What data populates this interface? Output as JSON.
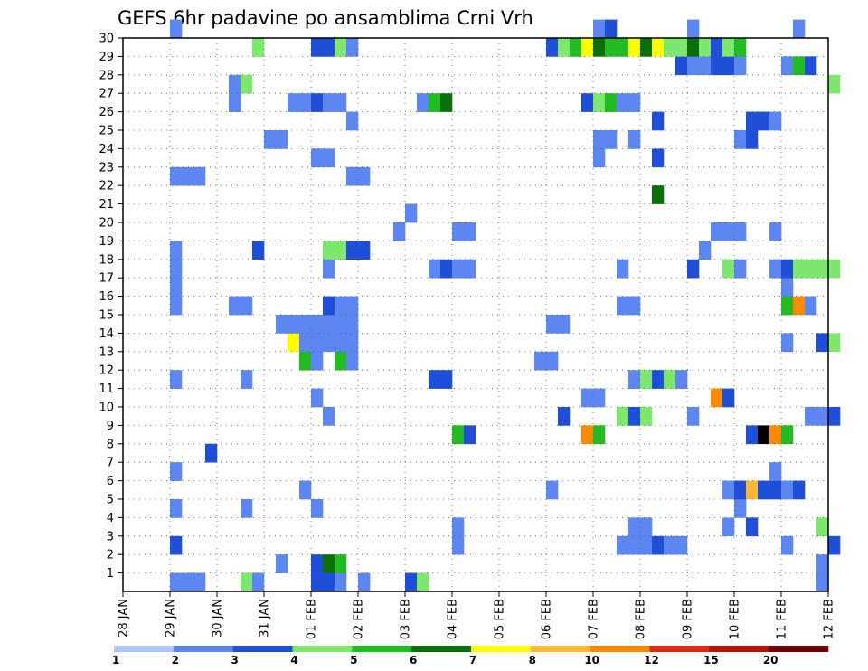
{
  "chart_data": {
    "type": "heatmap",
    "title": "GEFS 6hr padavine po ansamblima Crni Vrh",
    "xlabel": "",
    "ylabel": "",
    "x_tick_labels": [
      "28 JAN",
      "29 JAN",
      "30 JAN",
      "31 JAN",
      "01 FEB",
      "02 FEB",
      "03 FEB",
      "04 FEB",
      "05 FEB",
      "06 FEB",
      "07 FEB",
      "08 FEB",
      "09 FEB",
      "10 FEB",
      "11 FEB",
      "12 FEB"
    ],
    "x_range_steps": [
      0,
      60
    ],
    "steps_per_day": 4,
    "y_tick_labels": [
      "1",
      "2",
      "3",
      "4",
      "5",
      "6",
      "7",
      "8",
      "9",
      "10",
      "11",
      "12",
      "13",
      "14",
      "15",
      "16",
      "17",
      "18",
      "19",
      "20",
      "21",
      "22",
      "23",
      "24",
      "25",
      "26",
      "27",
      "28",
      "29",
      "30"
    ],
    "y_range_members": [
      0,
      30
    ],
    "grid": true,
    "levels": [
      1,
      2,
      3,
      4,
      5,
      6,
      7,
      8,
      10,
      12,
      15,
      20
    ],
    "level_colors": [
      "#aec6f5",
      "#5c86f0",
      "#1f4ed8",
      "#7ee86e",
      "#22bb22",
      "#0a6e0a",
      "#ffff00",
      "#ffb833",
      "#ff8a00",
      "#e02a10",
      "#b80f0f",
      "#6e0000"
    ],
    "legend_position": "bottom",
    "cells": [
      [
        0,
        4,
        1
      ],
      [
        0,
        5,
        1
      ],
      [
        0,
        6,
        1
      ],
      [
        0,
        10,
        3
      ],
      [
        0,
        11,
        1
      ],
      [
        0,
        16,
        2
      ],
      [
        0,
        17,
        2
      ],
      [
        0,
        18,
        1
      ],
      [
        0,
        20,
        1
      ],
      [
        0,
        24,
        2
      ],
      [
        0,
        25,
        3
      ],
      [
        0,
        59,
        1
      ],
      [
        1,
        13,
        1
      ],
      [
        1,
        16,
        2
      ],
      [
        1,
        17,
        5
      ],
      [
        1,
        18,
        4
      ],
      [
        1,
        59,
        1
      ],
      [
        2,
        4,
        2
      ],
      [
        2,
        28,
        1
      ],
      [
        2,
        42,
        1
      ],
      [
        2,
        43,
        1
      ],
      [
        2,
        44,
        1
      ],
      [
        2,
        45,
        2
      ],
      [
        2,
        46,
        1
      ],
      [
        2,
        47,
        1
      ],
      [
        2,
        56,
        1
      ],
      [
        2,
        60,
        2
      ],
      [
        3,
        28,
        1
      ],
      [
        3,
        43,
        1
      ],
      [
        3,
        44,
        1
      ],
      [
        3,
        51,
        1
      ],
      [
        3,
        53,
        2
      ],
      [
        3,
        59,
        3
      ],
      [
        4,
        4,
        1
      ],
      [
        4,
        10,
        1
      ],
      [
        4,
        16,
        1
      ],
      [
        4,
        52,
        1
      ],
      [
        5,
        15,
        1
      ],
      [
        5,
        36,
        1
      ],
      [
        5,
        51,
        1
      ],
      [
        5,
        52,
        2
      ],
      [
        5,
        53,
        7
      ],
      [
        5,
        54,
        2
      ],
      [
        5,
        55,
        2
      ],
      [
        5,
        56,
        1
      ],
      [
        5,
        57,
        2
      ],
      [
        6,
        4,
        1
      ],
      [
        6,
        55,
        1
      ],
      [
        7,
        7,
        2
      ],
      [
        8,
        28,
        4
      ],
      [
        8,
        29,
        2
      ],
      [
        8,
        39,
        8
      ],
      [
        8,
        40,
        4
      ],
      [
        8,
        53,
        2
      ],
      [
        8,
        54,
        12
      ],
      [
        8,
        55,
        8
      ],
      [
        8,
        56,
        4
      ],
      [
        9,
        17,
        1
      ],
      [
        9,
        37,
        2
      ],
      [
        9,
        42,
        3
      ],
      [
        9,
        43,
        2
      ],
      [
        9,
        44,
        3
      ],
      [
        9,
        48,
        1
      ],
      [
        9,
        58,
        1
      ],
      [
        9,
        59,
        1
      ],
      [
        9,
        60,
        2
      ],
      [
        10,
        16,
        1
      ],
      [
        10,
        39,
        1
      ],
      [
        10,
        40,
        1
      ],
      [
        10,
        50,
        8
      ],
      [
        10,
        51,
        2
      ],
      [
        11,
        4,
        1
      ],
      [
        11,
        10,
        1
      ],
      [
        11,
        26,
        2
      ],
      [
        11,
        27,
        2
      ],
      [
        11,
        43,
        1
      ],
      [
        11,
        44,
        3
      ],
      [
        11,
        45,
        2
      ],
      [
        11,
        46,
        3
      ],
      [
        11,
        47,
        1
      ],
      [
        12,
        15,
        4
      ],
      [
        12,
        16,
        1
      ],
      [
        12,
        18,
        4
      ],
      [
        12,
        19,
        1
      ],
      [
        12,
        35,
        1
      ],
      [
        12,
        36,
        1
      ],
      [
        13,
        14,
        6
      ],
      [
        13,
        15,
        1
      ],
      [
        13,
        16,
        1
      ],
      [
        13,
        17,
        1
      ],
      [
        13,
        18,
        1
      ],
      [
        13,
        19,
        1
      ],
      [
        13,
        56,
        1
      ],
      [
        13,
        59,
        2
      ],
      [
        13,
        60,
        3
      ],
      [
        14,
        13,
        1
      ],
      [
        14,
        14,
        1
      ],
      [
        14,
        15,
        1
      ],
      [
        14,
        16,
        1
      ],
      [
        14,
        17,
        1
      ],
      [
        14,
        18,
        1
      ],
      [
        14,
        19,
        1
      ],
      [
        14,
        36,
        1
      ],
      [
        14,
        37,
        1
      ],
      [
        15,
        4,
        1
      ],
      [
        15,
        9,
        1
      ],
      [
        15,
        10,
        1
      ],
      [
        15,
        17,
        2
      ],
      [
        15,
        18,
        1
      ],
      [
        15,
        19,
        1
      ],
      [
        15,
        42,
        1
      ],
      [
        15,
        43,
        1
      ],
      [
        15,
        56,
        4
      ],
      [
        15,
        57,
        8
      ],
      [
        15,
        58,
        1
      ],
      [
        16,
        4,
        1
      ],
      [
        16,
        56,
        1
      ],
      [
        17,
        4,
        1
      ],
      [
        17,
        17,
        1
      ],
      [
        17,
        26,
        1
      ],
      [
        17,
        27,
        2
      ],
      [
        17,
        28,
        1
      ],
      [
        17,
        29,
        1
      ],
      [
        17,
        42,
        1
      ],
      [
        17,
        48,
        2
      ],
      [
        17,
        51,
        3
      ],
      [
        17,
        52,
        1
      ],
      [
        17,
        55,
        1
      ],
      [
        17,
        56,
        2
      ],
      [
        17,
        57,
        3
      ],
      [
        17,
        58,
        3
      ],
      [
        17,
        59,
        3
      ],
      [
        17,
        60,
        3
      ],
      [
        18,
        4,
        1
      ],
      [
        18,
        11,
        2
      ],
      [
        18,
        17,
        3
      ],
      [
        18,
        18,
        3
      ],
      [
        18,
        19,
        2
      ],
      [
        18,
        20,
        2
      ],
      [
        18,
        49,
        1
      ],
      [
        19,
        23,
        1
      ],
      [
        19,
        28,
        1
      ],
      [
        19,
        29,
        1
      ],
      [
        19,
        50,
        1
      ],
      [
        19,
        51,
        1
      ],
      [
        19,
        52,
        1
      ],
      [
        19,
        55,
        1
      ],
      [
        20,
        24,
        1
      ],
      [
        21,
        45,
        5
      ],
      [
        22,
        4,
        1
      ],
      [
        22,
        5,
        1
      ],
      [
        22,
        6,
        1
      ],
      [
        22,
        19,
        1
      ],
      [
        22,
        20,
        1
      ],
      [
        23,
        16,
        1
      ],
      [
        23,
        17,
        1
      ],
      [
        23,
        40,
        1
      ],
      [
        23,
        45,
        2
      ],
      [
        24,
        12,
        1
      ],
      [
        24,
        13,
        1
      ],
      [
        24,
        40,
        1
      ],
      [
        24,
        41,
        1
      ],
      [
        24,
        43,
        1
      ],
      [
        24,
        52,
        1
      ],
      [
        24,
        53,
        2
      ],
      [
        25,
        19,
        1
      ],
      [
        25,
        45,
        2
      ],
      [
        25,
        53,
        2
      ],
      [
        25,
        54,
        2
      ],
      [
        25,
        55,
        1
      ],
      [
        26,
        9,
        1
      ],
      [
        26,
        14,
        1
      ],
      [
        26,
        15,
        1
      ],
      [
        26,
        16,
        2
      ],
      [
        26,
        17,
        1
      ],
      [
        26,
        18,
        1
      ],
      [
        26,
        25,
        1
      ],
      [
        26,
        26,
        4
      ],
      [
        26,
        27,
        5
      ],
      [
        26,
        39,
        2
      ],
      [
        26,
        40,
        3
      ],
      [
        26,
        41,
        4
      ],
      [
        26,
        42,
        1
      ],
      [
        26,
        43,
        1
      ],
      [
        27,
        9,
        1
      ],
      [
        27,
        10,
        3
      ],
      [
        27,
        60,
        3
      ],
      [
        28,
        47,
        2
      ],
      [
        28,
        48,
        1
      ],
      [
        28,
        49,
        1
      ],
      [
        28,
        50,
        2
      ],
      [
        28,
        51,
        2
      ],
      [
        28,
        52,
        1
      ],
      [
        28,
        56,
        1
      ],
      [
        28,
        57,
        4
      ],
      [
        28,
        58,
        2
      ],
      [
        29,
        11,
        3
      ],
      [
        29,
        16,
        2
      ],
      [
        29,
        17,
        2
      ],
      [
        29,
        18,
        3
      ],
      [
        29,
        19,
        1
      ],
      [
        29,
        36,
        2
      ],
      [
        29,
        37,
        3
      ],
      [
        29,
        38,
        4
      ],
      [
        29,
        39,
        6
      ],
      [
        29,
        40,
        5
      ],
      [
        29,
        41,
        4
      ],
      [
        29,
        42,
        4
      ],
      [
        29,
        43,
        6
      ],
      [
        29,
        44,
        5
      ],
      [
        29,
        45,
        6
      ],
      [
        29,
        46,
        3
      ],
      [
        29,
        47,
        3
      ],
      [
        29,
        48,
        5
      ],
      [
        29,
        49,
        3
      ],
      [
        29,
        50,
        2
      ],
      [
        29,
        51,
        3
      ],
      [
        29,
        52,
        4
      ],
      [
        30,
        4,
        1
      ],
      [
        30,
        40,
        1
      ],
      [
        30,
        41,
        2
      ],
      [
        30,
        48,
        1
      ],
      [
        30,
        57,
        1
      ]
    ]
  }
}
